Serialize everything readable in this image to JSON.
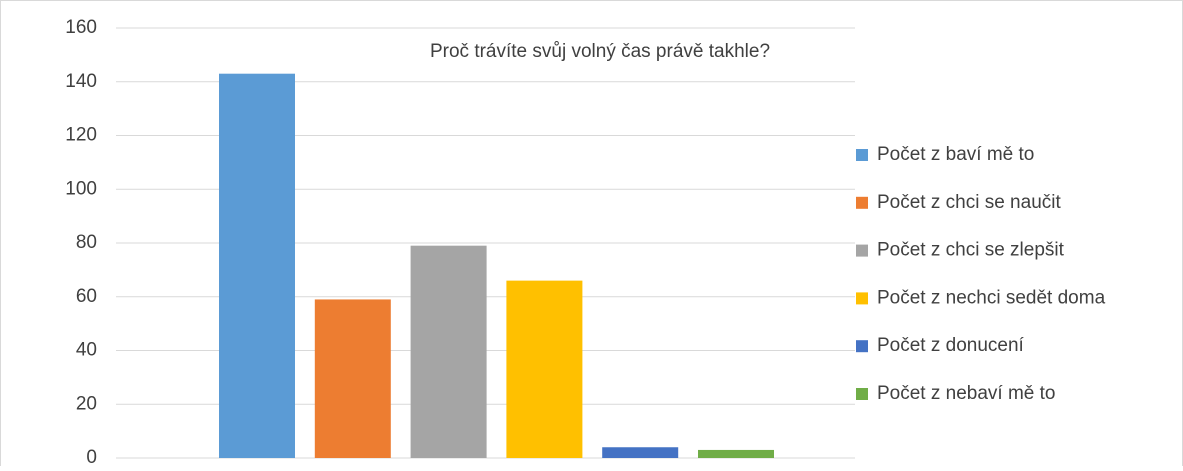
{
  "chart_data": {
    "type": "bar",
    "title": "Proč trávíte svůj volný čas právě takhle?",
    "categories": [
      null
    ],
    "series": [
      {
        "name": "Počet z baví mě to",
        "color": "#5b9bd5",
        "values": [
          143
        ]
      },
      {
        "name": "Počet z chci se naučit",
        "color": "#ed7d31",
        "values": [
          59
        ]
      },
      {
        "name": "Počet z chci se zlepšit",
        "color": "#a5a5a5",
        "values": [
          79
        ]
      },
      {
        "name": "Počet z nechci sedět doma",
        "color": "#ffc000",
        "values": [
          66
        ]
      },
      {
        "name": "Počet z donucení",
        "color": "#4472c4",
        "values": [
          4
        ]
      },
      {
        "name": "Počet z nebaví mě to",
        "color": "#70ad47",
        "values": [
          3
        ]
      }
    ],
    "ylim": [
      0,
      160
    ],
    "yticks": [
      0,
      20,
      40,
      60,
      80,
      100,
      120,
      140,
      160
    ],
    "grid": true,
    "legend": "right"
  }
}
